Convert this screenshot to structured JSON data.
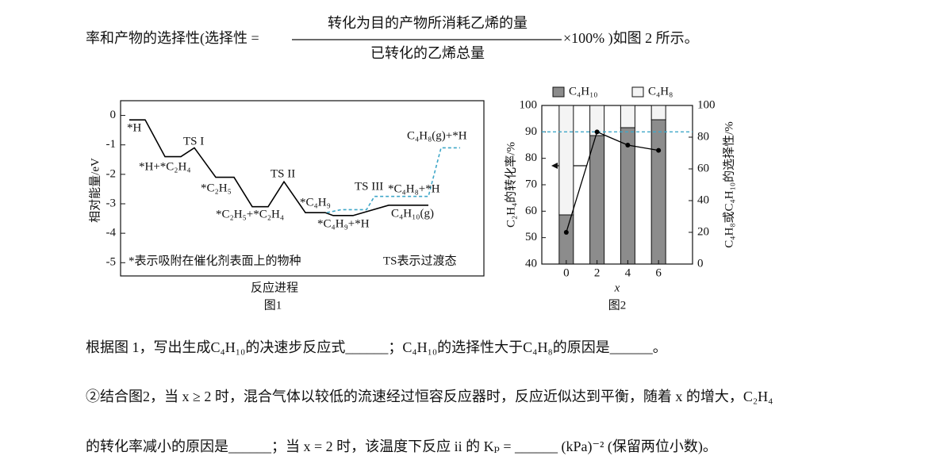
{
  "text": {
    "p1": {
      "before": "率和产物的选择性(选择性 =",
      "numerator": "转化为目的产物所消耗乙烯的量",
      "denominator": "已转化的乙烯总量",
      "after": "×100% )如图 2 所示。"
    },
    "p2": "根据图 1，写出生成C₄H₁₀的决速步反应式______；C₄H₁₀的选择性大于C₄H₈的原因是______。",
    "p3": "②结合图2，当 x ≥ 2 时，混合气体以较低的流速经过恒容反应器时，反应近似达到平衡，随着 x 的增大，C₂H₄",
    "p4": "的转化率减小的原因是______；当 x = 2 时，该温度下反应 ii 的 Kₚ = ______ (kPa)⁻² (保留两位小数)。"
  },
  "chart_data": [
    {
      "type": "energy-profile",
      "ylabel": "相对能量/eV",
      "xlabel": "反应进程",
      "caption": "图1",
      "ylim": [
        -5.45,
        0.5
      ],
      "yticks": [
        0,
        -1,
        -2,
        -3,
        -4,
        -5
      ],
      "series": [
        {
          "color": "#000000",
          "style": "solid",
          "values": [
            -0.15,
            -0.15,
            -1.4,
            -1.4,
            -1.1,
            -2.1,
            -2.1,
            -3.1,
            -3.1,
            -2.25,
            -3.3,
            -3.3,
            -3.4,
            -3.4,
            -3.05,
            -3.05
          ]
        },
        {
          "color": "#3fa7c8",
          "style": "dashed",
          "values": [
            -3.3,
            -3.2,
            -3.2,
            -2.75,
            -2.75,
            -1.1,
            -1.1
          ]
        }
      ],
      "annotations": [
        "*H",
        "TS I",
        "*H+*C₂H₄",
        "*C₂H₅",
        "TS II",
        "*C₂H₅+*C₂H₄",
        "*C₄H₉",
        "*C₄H₉+*H",
        "TS III",
        "*C₄H₈+*H",
        "C₄H₈(g)+*H",
        "C₄H₁₀(g)",
        "*表示吸附在催化剂表面上的物种",
        "TS表示过渡态"
      ]
    },
    {
      "type": "bar-line",
      "xlabel": "x",
      "ylabel": "C₂H₄的转化率/%",
      "y2label": "C₄H₈或C₄H₁₀的选择性/%",
      "caption": "图2",
      "categories": [
        "0",
        "2",
        "4",
        "6"
      ],
      "ylim": [
        40,
        100
      ],
      "yticks": [
        40,
        50,
        60,
        70,
        80,
        90,
        100
      ],
      "y2lim": [
        0,
        100
      ],
      "y2ticks": [
        0,
        20,
        40,
        60,
        80,
        100
      ],
      "legend": "top",
      "series": [
        {
          "name": "C₄H₁₀",
          "color": "#8c8c8c",
          "axis": "y2",
          "kind": "bar",
          "values": [
            31,
            81,
            86,
            91
          ]
        },
        {
          "name": "C₄H₈",
          "color": "#f4f4f4",
          "axis": "y2",
          "kind": "bar",
          "values": [
            69,
            19,
            14,
            9
          ]
        },
        {
          "color": "#000000",
          "axis": "y",
          "kind": "line",
          "values": [
            52,
            90,
            85,
            83
          ]
        }
      ],
      "reference_line": {
        "value": 90,
        "color": "#3fa7c8"
      }
    }
  ]
}
